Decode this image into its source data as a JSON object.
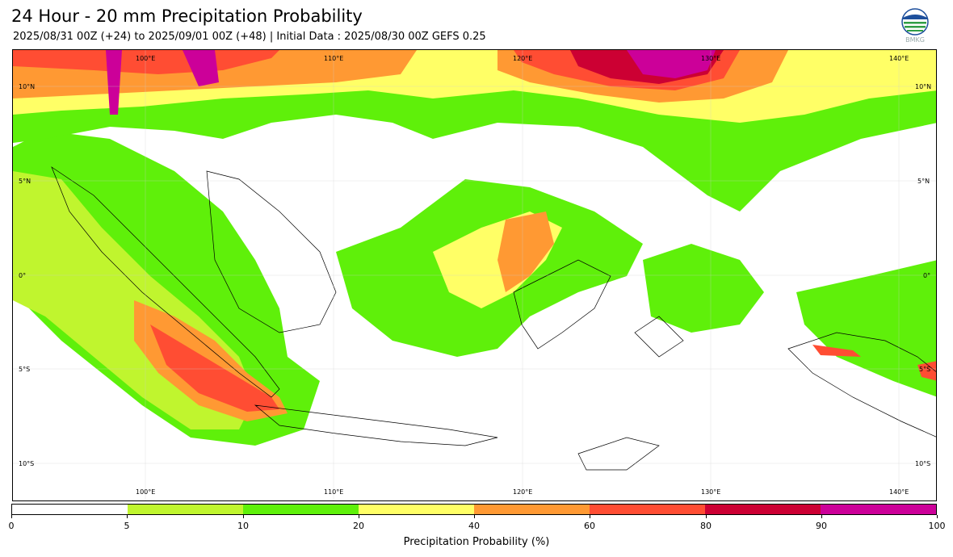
{
  "header": {
    "title": "24 Hour - 20 mm Precipitation Probability",
    "subtitle": "2025/08/31 00Z (+24) to 2025/09/01 00Z (+48) | Initial Data : 2025/08/30 00Z GEFS 0.25"
  },
  "logo": {
    "text": "BMKG",
    "icon": "bmkg-logo-icon"
  },
  "map": {
    "lon_labels": [
      "100°E",
      "110°E",
      "120°E",
      "130°E",
      "140°E"
    ],
    "lat_labels": [
      "10°N",
      "5°N",
      "0°",
      "5°S",
      "10°S"
    ],
    "grid": true,
    "background": "#ffffff"
  },
  "colorbar": {
    "title": "Precipitation Probability (%)",
    "ticks": [
      "0",
      "5",
      "10",
      "20",
      "40",
      "60",
      "80",
      "90",
      "100"
    ],
    "colors": [
      "#ffffff",
      "#c0f52e",
      "#5ff00a",
      "#ffff66",
      "#ff9933",
      "#ff4d33",
      "#cc0033",
      "#cc0099"
    ]
  }
}
